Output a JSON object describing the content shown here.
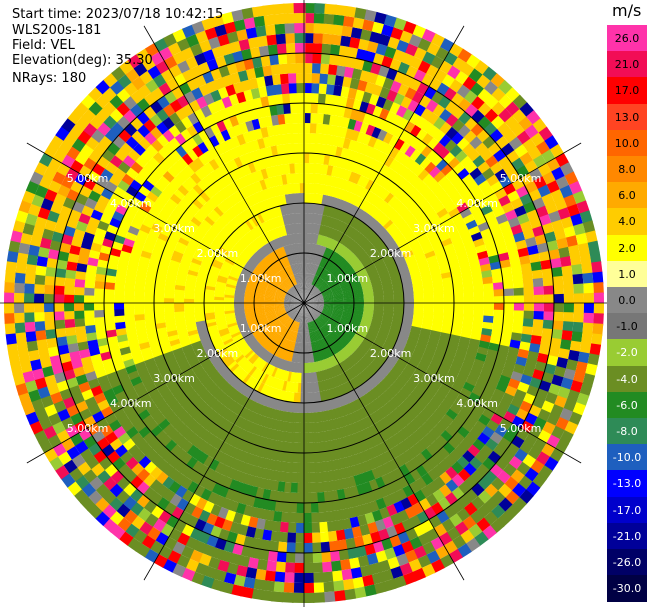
{
  "header": {
    "start_time": "Start time: 2023/07/18 10:42:15",
    "instrument": "WLS200s-181",
    "field": "Field: VEL",
    "elevation": "Elevation(deg): 35.30",
    "nrays": "NRays: 180"
  },
  "colorbar": {
    "unit": "m/s",
    "levels": [
      "26.0",
      "21.0",
      "17.0",
      "13.0",
      "10.0",
      "8.0",
      "6.0",
      "4.0",
      "2.0",
      "1.0",
      "0.0",
      "-1.0",
      "-2.0",
      "-4.0",
      "-6.0",
      "-8.0",
      "-10.0",
      "-13.0",
      "-17.0",
      "-21.0",
      "-26.0",
      "-30.0"
    ],
    "colors": [
      "#ff33aa",
      "#f20d56",
      "#ff0000",
      "#ff4422",
      "#ff6600",
      "#ff8800",
      "#ffaa00",
      "#ffcc00",
      "#ffff00",
      "#ffff99",
      "#888888",
      "#777777",
      "#99cc33",
      "#6b8e23",
      "#228b22",
      "#2e8b57",
      "#1e5fbf",
      "#0000ff",
      "#0000cc",
      "#000099",
      "#000066",
      "#000044"
    ]
  },
  "chart_data": {
    "type": "heatmap",
    "projection": "polar PPI",
    "field": "VEL",
    "units": "m/s",
    "nrays": 180,
    "range_ring_labels": [
      "1.00km",
      "2.00km",
      "3.00km",
      "4.00km",
      "5.00km"
    ],
    "rings_km": [
      1,
      2,
      3,
      4,
      5
    ],
    "max_range_km": 6.0,
    "radials_every_deg": 30,
    "color_scale_min": -30.0,
    "color_scale_max": 26.0,
    "dominant_regions": [
      {
        "sector": "west / northwest near range",
        "velocity_m_s": 2.0,
        "color": "#ffff00"
      },
      {
        "sector": "east / southeast near range",
        "velocity_m_s": -4.0,
        "color": "#6b8e23"
      },
      {
        "sector": "center west",
        "velocity_m_s": 4.0,
        "color": "#ffcc00"
      },
      {
        "sector": "center east",
        "velocity_m_s": -6.0,
        "color": "#228b22"
      },
      {
        "sector": "transition band",
        "velocity_m_s": 0.0,
        "color": "#888888"
      }
    ]
  }
}
